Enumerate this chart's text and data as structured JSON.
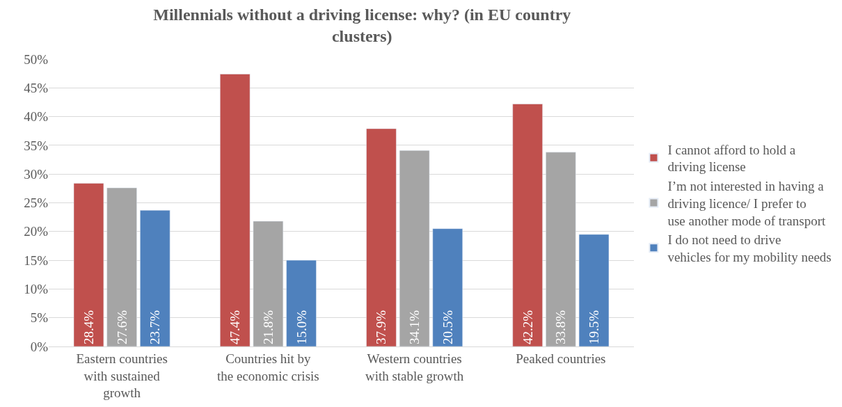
{
  "chart_data": {
    "type": "bar",
    "title": "Millennials without a driving license: why? (in EU country clusters)",
    "categories": [
      "Eastern countries with sustained growth",
      "Countries hit by the economic crisis",
      "Western countries with stable growth",
      "Peaked countries"
    ],
    "series": [
      {
        "name": "I cannot afford to hold a driving license",
        "color": "#c0504d",
        "values": [
          28.4,
          47.4,
          37.9,
          42.2
        ],
        "value_labels": [
          "28.4%",
          "47.4%",
          "37.9%",
          "42.2%"
        ]
      },
      {
        "name": "I’m not interested in having a driving licence/ I prefer to use another mode of transport",
        "color": "#a5a5a5",
        "values": [
          27.6,
          21.8,
          34.1,
          33.8
        ],
        "value_labels": [
          "27.6%",
          "21.8%",
          "34.1%",
          "33.8%"
        ]
      },
      {
        "name": "I do not need to drive vehicles for my mobility needs",
        "color": "#4f81bd",
        "values": [
          23.7,
          15.0,
          20.5,
          19.5
        ],
        "value_labels": [
          "23.7%",
          "15.0%",
          "20.5%",
          "19.5%"
        ]
      }
    ],
    "ylim": [
      0,
      50
    ],
    "yticks": [
      {
        "value": 0,
        "label": "0%"
      },
      {
        "value": 5,
        "label": "5%"
      },
      {
        "value": 10,
        "label": "10%"
      },
      {
        "value": 15,
        "label": "15%"
      },
      {
        "value": 20,
        "label": "20%"
      },
      {
        "value": 25,
        "label": "25%"
      },
      {
        "value": 30,
        "label": "30%"
      },
      {
        "value": 35,
        "label": "35%"
      },
      {
        "value": 40,
        "label": "40%"
      },
      {
        "value": 45,
        "label": "45%"
      },
      {
        "value": 50,
        "label": "50%"
      }
    ],
    "grid": "y",
    "legend": "right"
  }
}
